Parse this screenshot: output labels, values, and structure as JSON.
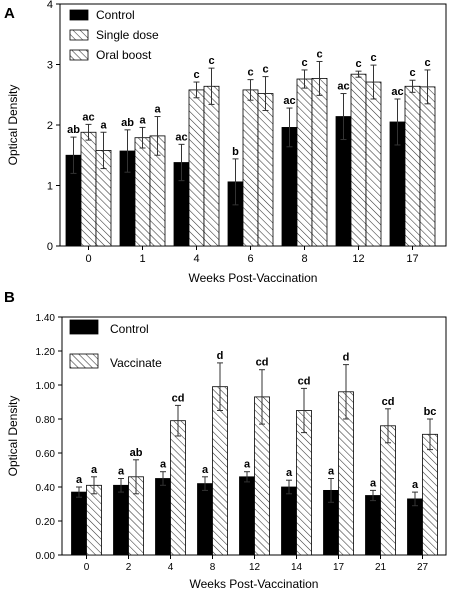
{
  "chart_data": [
    {
      "panel_label": "A",
      "type": "bar",
      "xlabel": "Weeks Post-Vaccination",
      "ylabel": "Optical Density",
      "ylim": [
        0,
        4
      ],
      "yticks": [
        "0",
        "1",
        "2",
        "3",
        "4"
      ],
      "grid": false,
      "legend": "top-left",
      "categories": [
        "0",
        "1",
        "4",
        "6",
        "8",
        "12",
        "17"
      ],
      "series": [
        {
          "name": "Control",
          "fill": "solid-black",
          "values": [
            1.5,
            1.57,
            1.38,
            1.06,
            1.96,
            2.14,
            2.05
          ],
          "errors": [
            0.3,
            0.35,
            0.3,
            0.38,
            0.32,
            0.38,
            0.38
          ],
          "labels": [
            "ab",
            "ab",
            "ac",
            "b",
            "ac",
            "ac",
            "ac"
          ]
        },
        {
          "name": "Single dose",
          "fill": "hatch",
          "values": [
            1.88,
            1.79,
            2.58,
            2.58,
            2.76,
            2.84,
            2.64
          ],
          "errors": [
            0.13,
            0.17,
            0.13,
            0.17,
            0.15,
            0.05,
            0.1
          ],
          "labels": [
            "ac",
            "a",
            "c",
            "c",
            "c",
            "c",
            "c"
          ]
        },
        {
          "name": "Oral boost",
          "fill": "hatch",
          "values": [
            1.58,
            1.82,
            2.64,
            2.52,
            2.77,
            2.71,
            2.63
          ],
          "errors": [
            0.3,
            0.32,
            0.3,
            0.28,
            0.28,
            0.28,
            0.28
          ],
          "labels": [
            "a",
            "a",
            "c",
            "c",
            "c",
            "c",
            "c"
          ]
        }
      ]
    },
    {
      "panel_label": "B",
      "type": "bar",
      "xlabel": "Weeks Post-Vaccination",
      "ylabel": "Optical Density",
      "ylim": [
        0,
        1.4
      ],
      "yticks": [
        "0.00",
        "0.20",
        "0.40",
        "0.60",
        "0.80",
        "1.00",
        "1.20",
        "1.40"
      ],
      "grid": false,
      "legend": "top-left",
      "categories": [
        "0",
        "2",
        "4",
        "8",
        "12",
        "14",
        "17",
        "21",
        "27"
      ],
      "series": [
        {
          "name": "Control",
          "fill": "solid-black",
          "values": [
            0.37,
            0.41,
            0.45,
            0.42,
            0.46,
            0.4,
            0.38,
            0.35,
            0.33
          ],
          "errors": [
            0.03,
            0.04,
            0.04,
            0.04,
            0.03,
            0.04,
            0.07,
            0.03,
            0.04
          ],
          "labels": [
            "a",
            "a",
            "a",
            "a",
            "a",
            "a",
            "a",
            "a",
            "a"
          ]
        },
        {
          "name": "Vaccinate",
          "fill": "hatch",
          "values": [
            0.41,
            0.46,
            0.79,
            0.99,
            0.93,
            0.85,
            0.96,
            0.76,
            0.71
          ],
          "errors": [
            0.05,
            0.1,
            0.09,
            0.14,
            0.16,
            0.13,
            0.16,
            0.1,
            0.09
          ],
          "labels": [
            "a",
            "ab",
            "cd",
            "d",
            "cd",
            "cd",
            "d",
            "cd",
            "bc"
          ]
        }
      ]
    }
  ]
}
